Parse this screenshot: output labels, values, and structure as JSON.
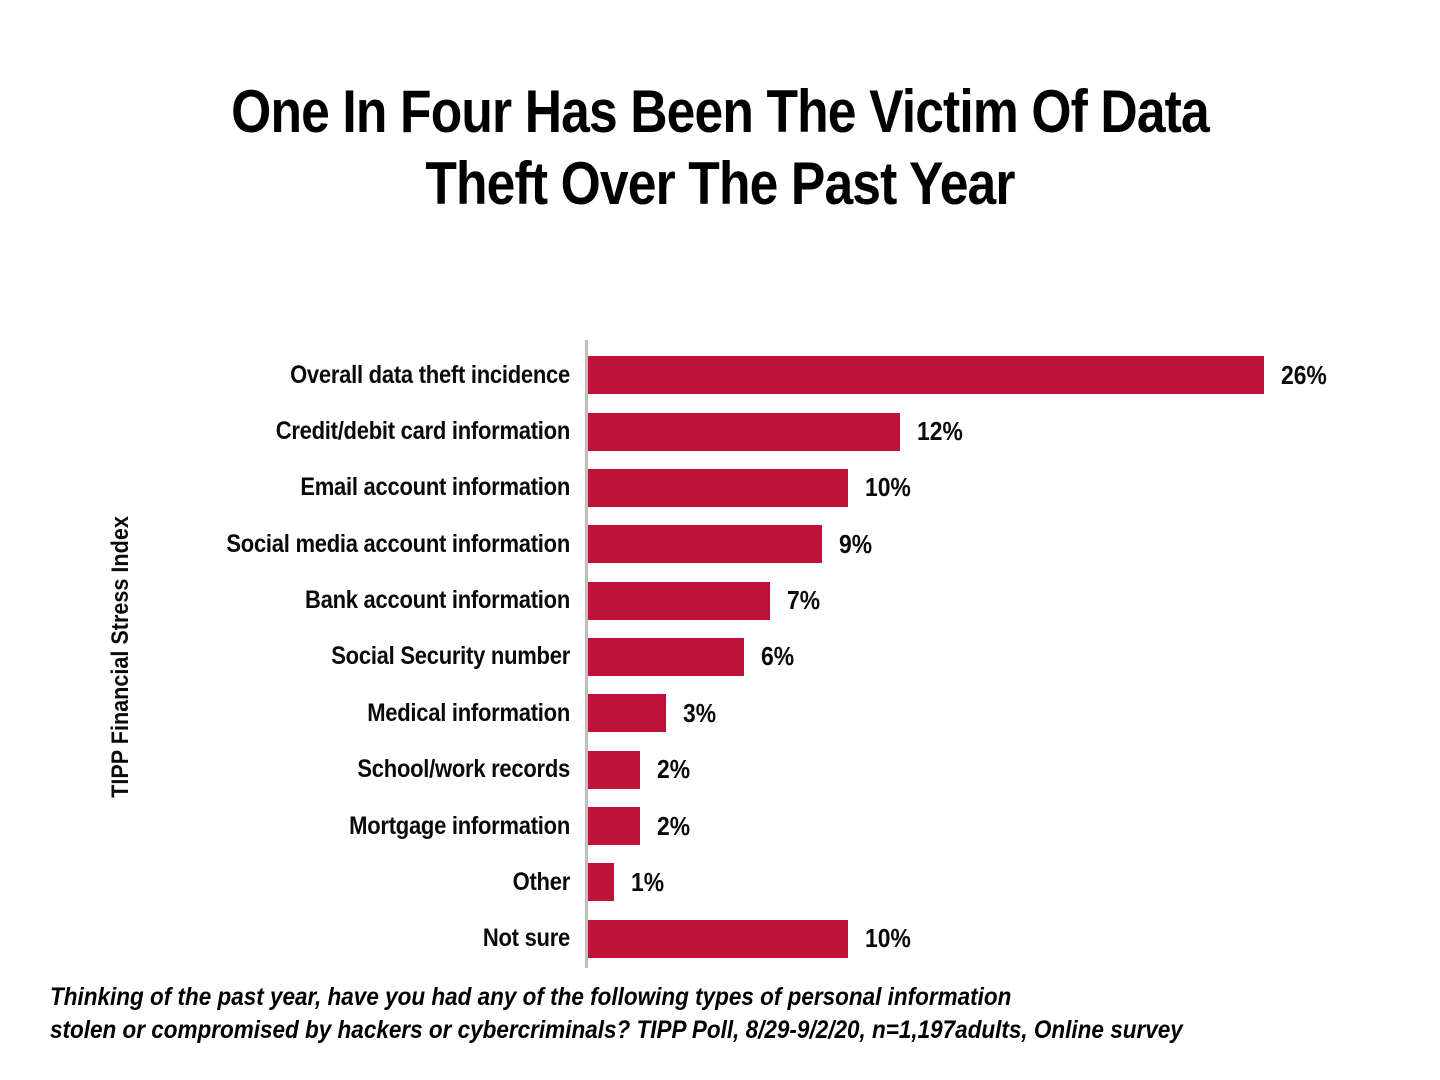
{
  "title": {
    "lines": [
      "One In Four Has Been The Victim Of Data",
      "Theft Over The Past Year"
    ]
  },
  "chart_data": {
    "type": "bar",
    "orientation": "horizontal",
    "title": "One In Four Has Been The Victim Of Data Theft Over The Past Year",
    "ylabel": "TIPP Financial Stress Index",
    "xlabel": "",
    "categories": [
      "Overall data theft incidence",
      "Credit/debit card information",
      "Email account information",
      "Social media account information",
      "Bank account information",
      "Social Security number",
      "Medical information",
      "School/work records",
      "Mortgage information",
      "Other",
      "Not sure"
    ],
    "values": [
      26,
      12,
      10,
      9,
      7,
      6,
      3,
      2,
      2,
      1,
      10
    ],
    "value_suffix": "%",
    "xlim": [
      0,
      26
    ],
    "grid": false,
    "legend": false,
    "bar_color": "#BF1238",
    "axis_color": "#BFBFBF",
    "data_labels": [
      "26%",
      "12%",
      "10%",
      "9%",
      "7%",
      "6%",
      "3%",
      "2%",
      "2%",
      "1%",
      "10%"
    ]
  },
  "footnote": {
    "lines": [
      "Thinking of the past year, have you had any of the following types of personal information",
      "stolen or compromised by hackers or cybercriminals? TIPP Poll, 8/29-9/2/20, n=1,197adults, Online survey"
    ]
  }
}
